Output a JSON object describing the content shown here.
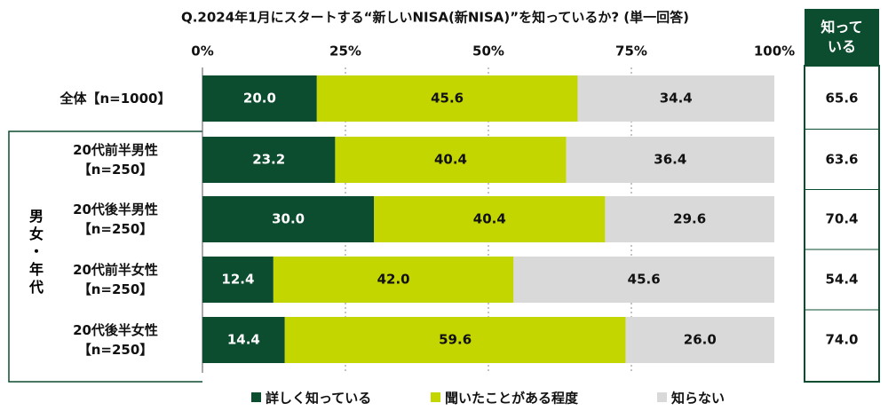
{
  "chart_data": {
    "type": "stacked-bar-horizontal",
    "title": "Q.2024年1月にスタートする“新しいNISA(新NISA)”を知っているか? (単一回答)",
    "categories": [
      "全体【n=1000】",
      "20代前半男性\n【n=250】",
      "20代後半男性\n【n=250】",
      "20代前半女性\n【n=250】",
      "20代後半女性\n【n=250】"
    ],
    "group_label": "男女・年代",
    "series": [
      {
        "name": "詳しく知っている",
        "color": "#0d4d2f",
        "label_color": "#ffffff",
        "values": [
          20.0,
          23.2,
          30.0,
          12.4,
          14.4
        ],
        "value_labels": [
          "20.0",
          "23.2",
          "30.0",
          "12.4",
          "14.4"
        ]
      },
      {
        "name": "聞いたことがある程度",
        "color": "#c4d600",
        "label_color": "#111111",
        "values": [
          45.6,
          40.4,
          40.4,
          42.0,
          59.6
        ],
        "value_labels": [
          "45.6",
          "40.4",
          "40.4",
          "42.0",
          "59.6"
        ]
      },
      {
        "name": "知らない",
        "color": "#d9d9d9",
        "label_color": "#111111",
        "values": [
          34.4,
          36.4,
          29.6,
          45.6,
          26.0
        ],
        "value_labels": [
          "34.4",
          "36.4",
          "29.6",
          "45.6",
          "26.0"
        ]
      }
    ],
    "xlim": [
      0,
      100
    ],
    "xticks": [
      {
        "value": 0,
        "label": "0%"
      },
      {
        "value": 25,
        "label": "25%"
      },
      {
        "value": 50,
        "label": "50%"
      },
      {
        "value": 75,
        "label": "75%"
      },
      {
        "value": 100,
        "label": "100%"
      }
    ],
    "grid": true,
    "side_column": {
      "title": "知って\nいる",
      "values": [
        "65.6",
        "63.6",
        "70.4",
        "54.4",
        "74.0"
      ]
    }
  }
}
